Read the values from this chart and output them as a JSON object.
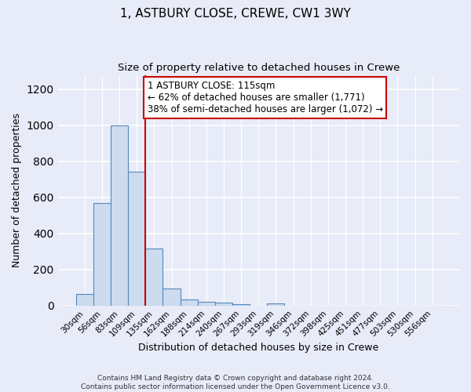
{
  "title": "1, ASTBURY CLOSE, CREWE, CW1 3WY",
  "subtitle": "Size of property relative to detached houses in Crewe",
  "xlabel": "Distribution of detached houses by size in Crewe",
  "ylabel": "Number of detached properties",
  "bar_labels": [
    "30sqm",
    "56sqm",
    "83sqm",
    "109sqm",
    "135sqm",
    "162sqm",
    "188sqm",
    "214sqm",
    "240sqm",
    "267sqm",
    "293sqm",
    "319sqm",
    "346sqm",
    "372sqm",
    "398sqm",
    "425sqm",
    "451sqm",
    "477sqm",
    "503sqm",
    "530sqm",
    "556sqm"
  ],
  "bar_values": [
    65,
    570,
    1000,
    745,
    315,
    95,
    35,
    20,
    15,
    8,
    0,
    12,
    0,
    0,
    0,
    0,
    0,
    0,
    0,
    0,
    0
  ],
  "bar_color": "#ccdcee",
  "bar_edge_color": "#5588bb",
  "vline_x": 3.5,
  "vline_color": "#cc0000",
  "ylim": [
    0,
    1280
  ],
  "annotation_text": "1 ASTBURY CLOSE: 115sqm\n← 62% of detached houses are smaller (1,771)\n38% of semi-detached houses are larger (1,072) →",
  "annotation_box_facecolor": "#ffffff",
  "annotation_box_edgecolor": "#cc0000",
  "footer_text": "Contains HM Land Registry data © Crown copyright and database right 2024.\nContains public sector information licensed under the Open Government Licence v3.0.",
  "bg_color": "#e8ecf8",
  "plot_bg_color": "#e8ecf8",
  "grid_color": "#ffffff",
  "title_fontsize": 11,
  "subtitle_fontsize": 9.5,
  "axis_label_fontsize": 9,
  "tick_fontsize": 7.5,
  "annotation_fontsize": 8.5,
  "footer_fontsize": 6.5
}
